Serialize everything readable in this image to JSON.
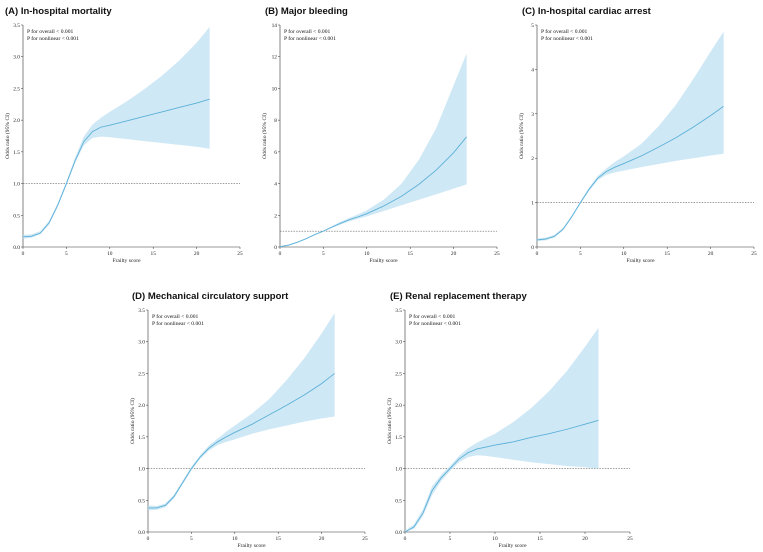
{
  "chart_data": [
    {
      "type": "line",
      "panel": "A",
      "title": "(A) In-hospital mortality",
      "annotations": [
        "P for overall < 0.001",
        "P for nonlinear < 0.001"
      ],
      "xlabel": "Frailty score",
      "ylabel": "Odds ratio (95% CI)",
      "xlim": [
        0,
        25
      ],
      "ylim": [
        0,
        3.5
      ],
      "xticks": [
        "0",
        "5",
        "10",
        "15",
        "20",
        "25"
      ],
      "yticks": [
        "0.0",
        "0.5",
        "1.0",
        "1.5",
        "2.0",
        "2.5",
        "3.0",
        "3.5"
      ],
      "reference": 1.0,
      "series": [
        {
          "name": "Odds ratio",
          "x": [
            0,
            1,
            2,
            3,
            4,
            5,
            6,
            7,
            8,
            9,
            10,
            12,
            14,
            16,
            18,
            20,
            21.5
          ],
          "y": [
            0.16,
            0.17,
            0.22,
            0.38,
            0.66,
            1.0,
            1.36,
            1.66,
            1.82,
            1.89,
            1.92,
            1.99,
            2.06,
            2.13,
            2.2,
            2.27,
            2.33
          ],
          "lower": [
            0.13,
            0.145,
            0.2,
            0.35,
            0.63,
            0.97,
            1.32,
            1.6,
            1.72,
            1.74,
            1.73,
            1.7,
            1.67,
            1.64,
            1.61,
            1.58,
            1.55
          ],
          "upper": [
            0.19,
            0.2,
            0.25,
            0.41,
            0.69,
            1.03,
            1.41,
            1.74,
            1.93,
            2.04,
            2.13,
            2.3,
            2.49,
            2.7,
            2.94,
            3.22,
            3.47
          ]
        }
      ]
    },
    {
      "type": "line",
      "panel": "B",
      "title": "(B) Major bleeding",
      "annotations": [
        "P for overall < 0.001",
        "P for nonlinear < 0.001"
      ],
      "xlabel": "Frailty score",
      "ylabel": "Odds ratio (95% CI)",
      "xlim": [
        0,
        25
      ],
      "ylim": [
        0,
        14
      ],
      "xticks": [
        "0",
        "5",
        "10",
        "15",
        "20",
        "25"
      ],
      "yticks": [
        "0",
        "2",
        "4",
        "6",
        "8",
        "10",
        "12",
        "14"
      ],
      "reference": 1.0,
      "series": [
        {
          "name": "Odds ratio",
          "x": [
            0,
            1,
            2,
            3,
            4,
            5,
            6,
            7,
            8,
            9,
            10,
            12,
            14,
            16,
            18,
            20,
            21.5
          ],
          "y": [
            0.02,
            0.12,
            0.3,
            0.52,
            0.78,
            1.0,
            1.26,
            1.5,
            1.72,
            1.9,
            2.1,
            2.6,
            3.2,
            3.95,
            4.85,
            5.95,
            6.95
          ],
          "lower": [
            0.0,
            0.08,
            0.25,
            0.47,
            0.73,
            0.96,
            1.2,
            1.42,
            1.62,
            1.78,
            1.93,
            2.28,
            2.63,
            2.98,
            3.33,
            3.68,
            3.95
          ],
          "upper": [
            0.05,
            0.16,
            0.35,
            0.57,
            0.83,
            1.04,
            1.32,
            1.6,
            1.84,
            2.06,
            2.32,
            3.0,
            4.0,
            5.5,
            7.5,
            10.2,
            12.2
          ]
        }
      ]
    },
    {
      "type": "line",
      "panel": "C",
      "title": "(C) In-hospital cardiac arrest",
      "annotations": [
        "P for overall < 0.001",
        "P for nonlinear < 0.001"
      ],
      "xlabel": "Frailty score",
      "ylabel": "Odds ratio (95% CI)",
      "xlim": [
        0,
        25
      ],
      "ylim": [
        0,
        5
      ],
      "xticks": [
        "0",
        "5",
        "10",
        "15",
        "20",
        "25"
      ],
      "yticks": [
        "0",
        "1",
        "2",
        "3",
        "4",
        "5"
      ],
      "reference": 1.0,
      "series": [
        {
          "name": "Odds ratio",
          "x": [
            0,
            1,
            2,
            3,
            4,
            5,
            6,
            7,
            8,
            9,
            10,
            12,
            14,
            16,
            18,
            20,
            21.5
          ],
          "y": [
            0.16,
            0.18,
            0.24,
            0.4,
            0.68,
            1.0,
            1.3,
            1.55,
            1.7,
            1.8,
            1.88,
            2.05,
            2.25,
            2.46,
            2.7,
            2.96,
            3.17
          ],
          "lower": [
            0.13,
            0.15,
            0.21,
            0.37,
            0.65,
            0.97,
            1.26,
            1.5,
            1.63,
            1.68,
            1.72,
            1.8,
            1.87,
            1.94,
            2.0,
            2.06,
            2.1
          ],
          "upper": [
            0.19,
            0.21,
            0.27,
            0.43,
            0.71,
            1.03,
            1.34,
            1.6,
            1.77,
            1.92,
            2.04,
            2.32,
            2.72,
            3.2,
            3.78,
            4.4,
            4.85
          ]
        }
      ]
    },
    {
      "type": "line",
      "panel": "D",
      "title": "(D) Mechanical circulatory support",
      "annotations": [
        "P for overall < 0.001",
        "P for nonlinear < 0.001"
      ],
      "xlabel": "Frailty score",
      "ylabel": "Odds ratio (95% CI)",
      "xlim": [
        0,
        25
      ],
      "ylim": [
        0,
        3.5
      ],
      "xticks": [
        "0",
        "5",
        "10",
        "15",
        "20",
        "25"
      ],
      "yticks": [
        "0.0",
        "0.5",
        "1.0",
        "1.5",
        "2.0",
        "2.5",
        "3.0",
        "3.5"
      ],
      "reference": 1.0,
      "series": [
        {
          "name": "Odds ratio",
          "x": [
            0,
            1,
            2,
            3,
            4,
            5,
            6,
            7,
            8,
            9,
            10,
            12,
            14,
            16,
            18,
            20,
            21.5
          ],
          "y": [
            0.38,
            0.38,
            0.42,
            0.56,
            0.78,
            1.0,
            1.18,
            1.32,
            1.42,
            1.5,
            1.57,
            1.7,
            1.85,
            2.0,
            2.16,
            2.34,
            2.5
          ],
          "lower": [
            0.34,
            0.35,
            0.39,
            0.53,
            0.75,
            0.97,
            1.15,
            1.28,
            1.37,
            1.42,
            1.46,
            1.55,
            1.62,
            1.68,
            1.74,
            1.79,
            1.82
          ],
          "upper": [
            0.42,
            0.41,
            0.45,
            0.59,
            0.81,
            1.03,
            1.21,
            1.36,
            1.47,
            1.58,
            1.68,
            1.87,
            2.1,
            2.4,
            2.74,
            3.13,
            3.45
          ]
        }
      ]
    },
    {
      "type": "line",
      "panel": "E",
      "title": "(E) Renal replacement therapy",
      "annotations": [
        "P for overall < 0.001",
        "P for nonlinear < 0.001"
      ],
      "xlabel": "Frailty score",
      "ylabel": "Odds ratio (95% CI)",
      "xlim": [
        0,
        25
      ],
      "ylim": [
        0,
        3.5
      ],
      "xticks": [
        "0",
        "5",
        "10",
        "15",
        "20",
        "25"
      ],
      "yticks": [
        "0.0",
        "0.5",
        "1.0",
        "1.5",
        "2.0",
        "2.5",
        "3.0",
        "3.5"
      ],
      "reference": 1.0,
      "series": [
        {
          "name": "Odds ratio",
          "x": [
            0,
            1,
            2,
            3,
            4,
            5,
            6,
            7,
            8,
            9,
            10,
            12,
            14,
            16,
            18,
            20,
            21.5
          ],
          "y": [
            0.0,
            0.08,
            0.3,
            0.65,
            0.85,
            1.0,
            1.15,
            1.25,
            1.31,
            1.34,
            1.37,
            1.42,
            1.49,
            1.55,
            1.62,
            1.7,
            1.76
          ],
          "lower": [
            0.0,
            0.05,
            0.25,
            0.58,
            0.8,
            0.96,
            1.1,
            1.18,
            1.21,
            1.2,
            1.18,
            1.14,
            1.1,
            1.07,
            1.04,
            1.02,
            1.0
          ],
          "upper": [
            0.02,
            0.12,
            0.36,
            0.72,
            0.9,
            1.04,
            1.2,
            1.32,
            1.41,
            1.48,
            1.55,
            1.73,
            1.95,
            2.22,
            2.54,
            2.92,
            3.22
          ]
        }
      ]
    }
  ]
}
